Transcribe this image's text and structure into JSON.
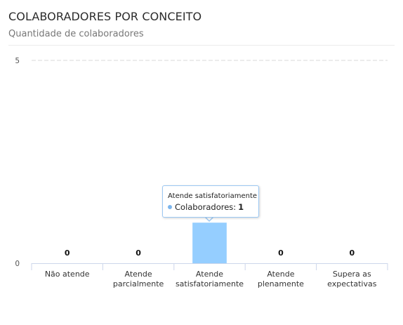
{
  "header": {
    "title": "COLABORADORES POR CONCEITO",
    "subtitle": "Quantidade de colaboradores"
  },
  "chart_data": {
    "type": "bar",
    "categories": [
      "Não atende",
      "Atende parcialmente",
      "Atende satisfatoriamente",
      "Atende plenamente",
      "Supera as expectativas"
    ],
    "category_lines": [
      [
        "Não atende"
      ],
      [
        "Atende",
        "parcialmente"
      ],
      [
        "Atende",
        "satisfatoriamente"
      ],
      [
        "Atende",
        "plenamente"
      ],
      [
        "Supera as",
        "expectativas"
      ]
    ],
    "series": [
      {
        "name": "Colaboradores",
        "values": [
          0,
          0,
          1,
          0,
          0
        ],
        "color": "#7cb5ec"
      }
    ],
    "ylim": [
      0,
      5
    ],
    "yticks": [
      0,
      5
    ],
    "hovered_index": 2,
    "hover_color": "#95ceff",
    "grid": "dashed",
    "legend": "none"
  },
  "tooltip": {
    "title": "Atende satisfatoriamente",
    "series_label": "Colaboradores:",
    "value": "1",
    "dot_color": "#7cb5ec"
  }
}
